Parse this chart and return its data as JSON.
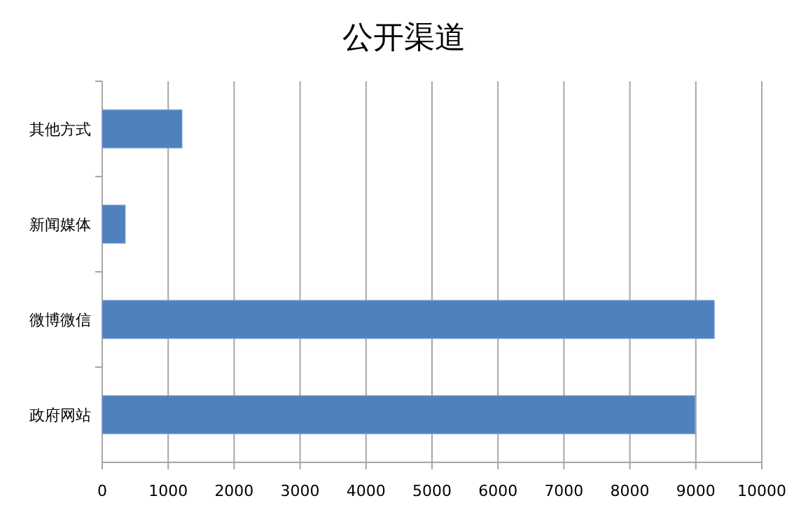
{
  "chart_data": {
    "type": "bar",
    "orientation": "horizontal",
    "title": "公开渠道",
    "categories": [
      "其他方式",
      "新闻媒体",
      "微博微信",
      "政府网站"
    ],
    "values": [
      1210,
      350,
      9280,
      8990
    ],
    "color": "#4f81bd",
    "xlim": [
      0,
      10000
    ],
    "xticks": [
      0,
      1000,
      2000,
      3000,
      4000,
      5000,
      6000,
      7000,
      8000,
      9000,
      10000
    ],
    "grid": "x"
  }
}
